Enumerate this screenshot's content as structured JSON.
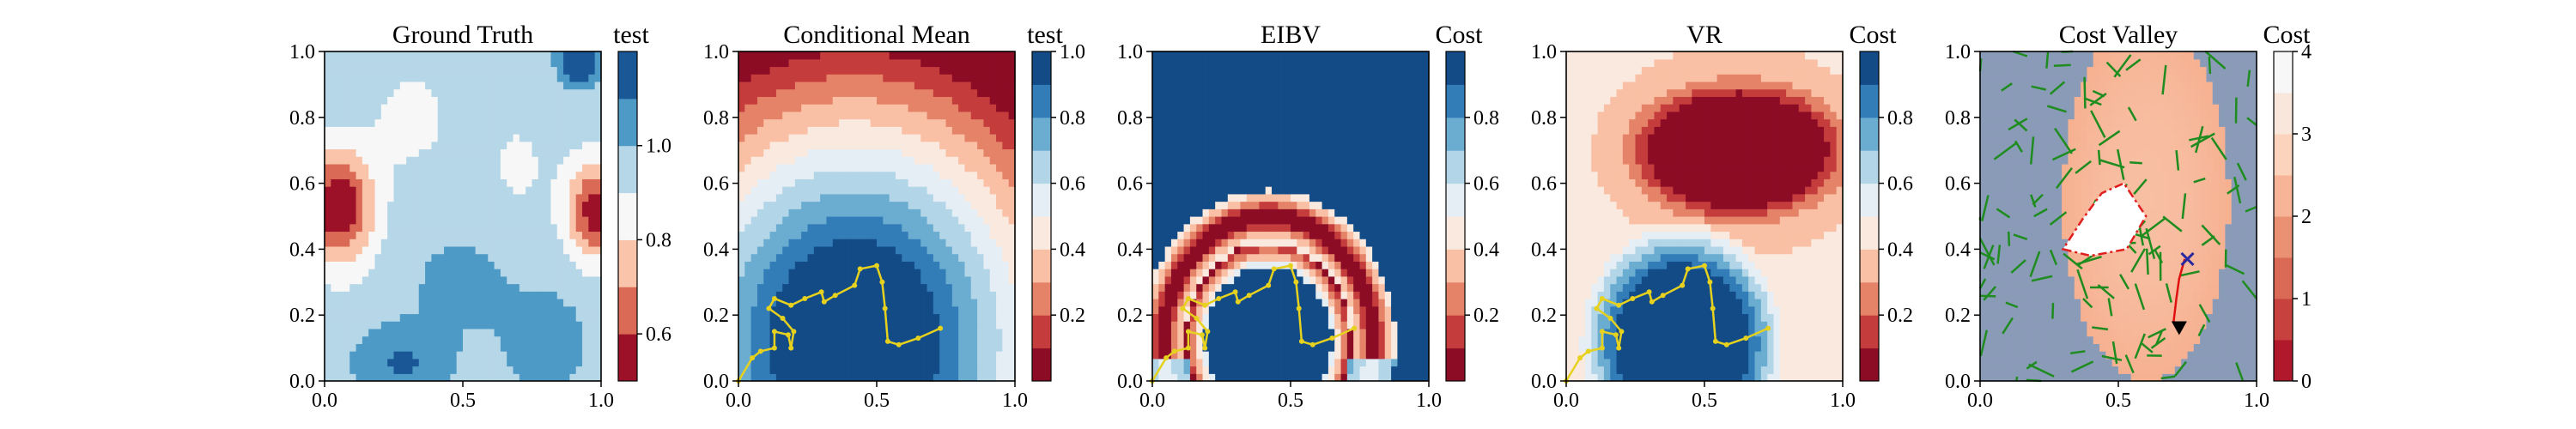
{
  "chart_data": [
    {
      "type": "heatmap",
      "title": "Ground Truth",
      "colorbar_label": "test",
      "colormap": "RdBu",
      "levels": [
        0.5,
        0.6,
        0.7,
        0.8,
        0.9,
        1.0,
        1.1,
        1.2
      ],
      "colorbar_ticks": [
        "0.6",
        "0.8",
        "1.0"
      ],
      "colorbar_tick_values": [
        0.6,
        0.8,
        1.0
      ],
      "xlim": [
        0,
        1
      ],
      "ylim": [
        0,
        1
      ],
      "x_ticks": [
        "0.0",
        "0.5",
        "1.0"
      ],
      "y_ticks": [
        "0.0",
        "0.2",
        "0.4",
        "0.6",
        "0.8",
        "1.0"
      ],
      "field": {
        "base": 0.95,
        "bumps": [
          {
            "x": 0.05,
            "y": 0.53,
            "sx": 0.09,
            "sy": 0.12,
            "a": -0.45
          },
          {
            "x": 0.98,
            "y": 0.52,
            "sx": 0.07,
            "sy": 0.1,
            "a": -0.42
          },
          {
            "x": 0.3,
            "y": 0.8,
            "sx": 0.1,
            "sy": 0.1,
            "a": -0.1
          },
          {
            "x": 0.92,
            "y": 0.97,
            "sx": 0.05,
            "sy": 0.05,
            "a": 0.3
          },
          {
            "x": 0.5,
            "y": 0.3,
            "sx": 0.15,
            "sy": 0.12,
            "a": 0.08
          },
          {
            "x": 0.28,
            "y": 0.05,
            "sx": 0.12,
            "sy": 0.08,
            "a": 0.16
          },
          {
            "x": 0.8,
            "y": 0.12,
            "sx": 0.1,
            "sy": 0.1,
            "a": 0.13
          },
          {
            "x": 0.12,
            "y": 0.9,
            "sx": 0.08,
            "sy": 0.08,
            "a": 0.06
          },
          {
            "x": 0.7,
            "y": 0.65,
            "sx": 0.1,
            "sy": 0.15,
            "a": -0.06
          }
        ]
      }
    },
    {
      "type": "heatmap",
      "title": "Conditional Mean",
      "colorbar_label": "test",
      "colormap": "RdBu",
      "levels": [
        0.0,
        0.1,
        0.2,
        0.3,
        0.4,
        0.5,
        0.6,
        0.7,
        0.8,
        0.9,
        1.0
      ],
      "colorbar_ticks": [
        "0.2",
        "0.4",
        "0.6",
        "0.8",
        "1.0"
      ],
      "colorbar_tick_values": [
        0.2,
        0.4,
        0.6,
        0.8,
        1.0
      ],
      "xlim": [
        0,
        1
      ],
      "ylim": [
        0,
        1
      ],
      "x_ticks": [
        "0.0",
        "0.5",
        "1.0"
      ],
      "y_ticks": [
        "0.0",
        "0.2",
        "0.4",
        "0.6",
        "0.8",
        "1.0"
      ],
      "field": {
        "radial": {
          "x": 0.42,
          "y": 0.12,
          "r0": 0.24,
          "r1": 0.95
        }
      }
    },
    {
      "type": "heatmap",
      "title": "EIBV",
      "colorbar_label": "Cost",
      "colormap": "RdBu",
      "levels": [
        0.0,
        0.1,
        0.2,
        0.3,
        0.4,
        0.5,
        0.6,
        0.7,
        0.8,
        0.9,
        1.0
      ],
      "colorbar_ticks": [
        "0.2",
        "0.4",
        "0.6",
        "0.8"
      ],
      "colorbar_tick_values": [
        0.2,
        0.4,
        0.6,
        0.8
      ],
      "xlim": [
        0,
        1
      ],
      "ylim": [
        0,
        1
      ],
      "x_ticks": [
        "0.0",
        "0.5",
        "1.0"
      ],
      "y_ticks": [
        "0.0",
        "0.2",
        "0.4",
        "0.6",
        "0.8",
        "1.0"
      ],
      "field": {
        "ring": {
          "x": 0.42,
          "y": 0.12,
          "r": 0.3,
          "w": 0.1,
          "band": 0.42,
          "low_angle": 0.95
        }
      }
    },
    {
      "type": "heatmap",
      "title": "VR",
      "colorbar_label": "Cost",
      "colormap": "RdBu",
      "levels": [
        0.0,
        0.1,
        0.2,
        0.3,
        0.4,
        0.5,
        0.6,
        0.7,
        0.8,
        0.9,
        1.0
      ],
      "colorbar_ticks": [
        "0.2",
        "0.4",
        "0.6",
        "0.8"
      ],
      "colorbar_tick_values": [
        0.2,
        0.4,
        0.6,
        0.8
      ],
      "xlim": [
        0,
        1
      ],
      "ylim": [
        0,
        1
      ],
      "x_ticks": [
        "0.0",
        "0.5",
        "1.0"
      ],
      "y_ticks": [
        "0.0",
        "0.2",
        "0.4",
        "0.6",
        "0.8",
        "1.0"
      ],
      "field": {
        "vr": {
          "x": 0.42,
          "y": 0.12,
          "r0": 0.22,
          "r1": 0.38,
          "hx": 0.62,
          "hy": 0.7
        }
      }
    },
    {
      "type": "heatmap",
      "title": "Cost Valley",
      "colorbar_label": "Cost",
      "colormap": "RdBu",
      "levels": [
        0,
        0.5,
        1,
        1.5,
        2,
        2.5,
        3,
        3.5,
        4
      ],
      "colorbar_ticks": [
        "0",
        "1",
        "2",
        "3",
        "4"
      ],
      "colorbar_tick_values": [
        0,
        1,
        2,
        3,
        4
      ],
      "xlim": [
        0,
        1
      ],
      "ylim": [
        0,
        1
      ],
      "x_ticks": [
        "0.0",
        "0.5",
        "1.0"
      ],
      "y_ticks": [
        "0.0",
        "0.2",
        "0.4",
        "0.6",
        "0.8",
        "1.0"
      ],
      "field": {
        "valley": true
      },
      "obstacle_polygon": [
        [
          0.3,
          0.4
        ],
        [
          0.4,
          0.38
        ],
        [
          0.53,
          0.4
        ],
        [
          0.6,
          0.5
        ],
        [
          0.52,
          0.6
        ],
        [
          0.44,
          0.57
        ],
        [
          0.37,
          0.49
        ]
      ],
      "red_path": [
        [
          0.7,
          0.18
        ],
        [
          0.71,
          0.25
        ],
        [
          0.72,
          0.31
        ],
        [
          0.74,
          0.37
        ]
      ],
      "start_marker": [
        0.72,
        0.16
      ],
      "goal_marker": [
        0.75,
        0.37
      ],
      "rrt_tree_color": "#1e8c1e"
    }
  ],
  "path": {
    "color": "#e6d21e",
    "points": [
      [
        0.0,
        0.0
      ],
      [
        0.05,
        0.07
      ],
      [
        0.08,
        0.09
      ],
      [
        0.13,
        0.1
      ],
      [
        0.13,
        0.15
      ],
      [
        0.18,
        0.14
      ],
      [
        0.19,
        0.1
      ],
      [
        0.2,
        0.15
      ],
      [
        0.16,
        0.19
      ],
      [
        0.11,
        0.22
      ],
      [
        0.13,
        0.25
      ],
      [
        0.19,
        0.23
      ],
      [
        0.24,
        0.25
      ],
      [
        0.3,
        0.27
      ],
      [
        0.31,
        0.24
      ],
      [
        0.35,
        0.26
      ],
      [
        0.42,
        0.29
      ],
      [
        0.44,
        0.34
      ],
      [
        0.5,
        0.35
      ],
      [
        0.52,
        0.3
      ],
      [
        0.53,
        0.22
      ],
      [
        0.54,
        0.12
      ],
      [
        0.58,
        0.11
      ],
      [
        0.65,
        0.13
      ],
      [
        0.73,
        0.16
      ]
    ]
  },
  "colors": {
    "rdbu": [
      "#67001f",
      "#b2182b",
      "#d6604d",
      "#f4a582",
      "#fddbc7",
      "#f7f7f7",
      "#d1e5f0",
      "#92c5de",
      "#4393c3",
      "#2166ac",
      "#053061"
    ]
  }
}
